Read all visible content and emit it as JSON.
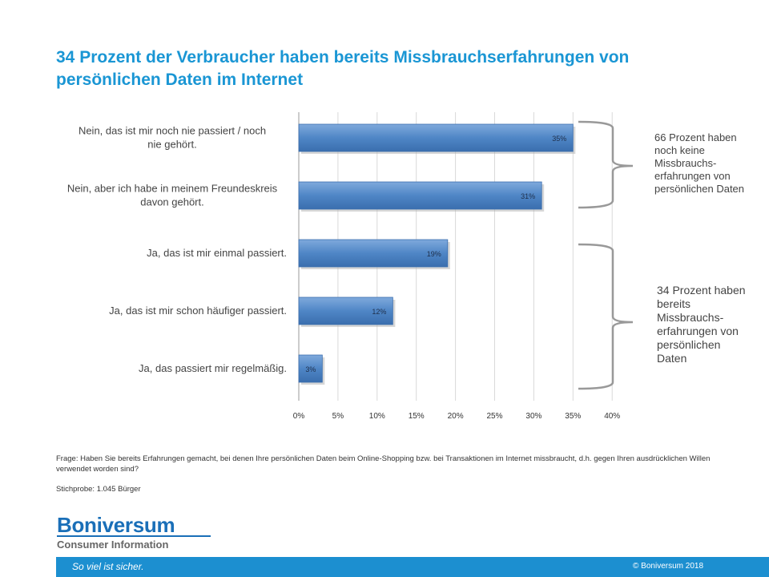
{
  "title": "34 Prozent der Verbraucher haben bereits Missbrauchserfahrungen von persönlichen Daten im Internet",
  "chart_data": {
    "type": "bar",
    "orientation": "horizontal",
    "categories": [
      "Nein, das ist mir noch nie passiert / noch nie gehört.",
      "Nein, aber ich habe in meinem Freundeskreis davon gehört.",
      "Ja, das ist mir einmal passiert.",
      "Ja, das ist mir schon häufiger passiert.",
      "Ja, das passiert mir regelmäßig."
    ],
    "values": [
      35,
      31,
      19,
      12,
      3
    ],
    "value_labels": [
      "35%",
      "31%",
      "19%",
      "12%",
      "3%"
    ],
    "xlim": [
      0,
      40
    ],
    "x_ticks": [
      "0%",
      "5%",
      "10%",
      "15%",
      "20%",
      "25%",
      "30%",
      "35%",
      "40%"
    ],
    "grid": "vertical",
    "bar_color": "#4f86c6",
    "annotations": [
      "66 Prozent haben noch keine Missbrauchs-erfahrungen von persönlichen Daten",
      "34 Prozent haben bereits Missbrauchs-erfahrungen von persönlichen Daten"
    ]
  },
  "question": "Frage: Haben Sie bereits Erfahrungen gemacht, bei denen Ihre persönlichen Daten beim Online-Shopping bzw. bei Transaktionen im Internet missbraucht, d.h. gegen Ihren ausdrücklichen Willen verwendet worden sind?",
  "sample": "Stichprobe: 1.045 Bürger",
  "logo": {
    "name": "Boniversum",
    "subtitle": "Consumer Information"
  },
  "footer": {
    "slogan": "So viel ist sicher.",
    "copyright": "© Boniversum 2018"
  },
  "colors": {
    "accent": "#1a96d4",
    "footer": "#1c8fd0"
  }
}
